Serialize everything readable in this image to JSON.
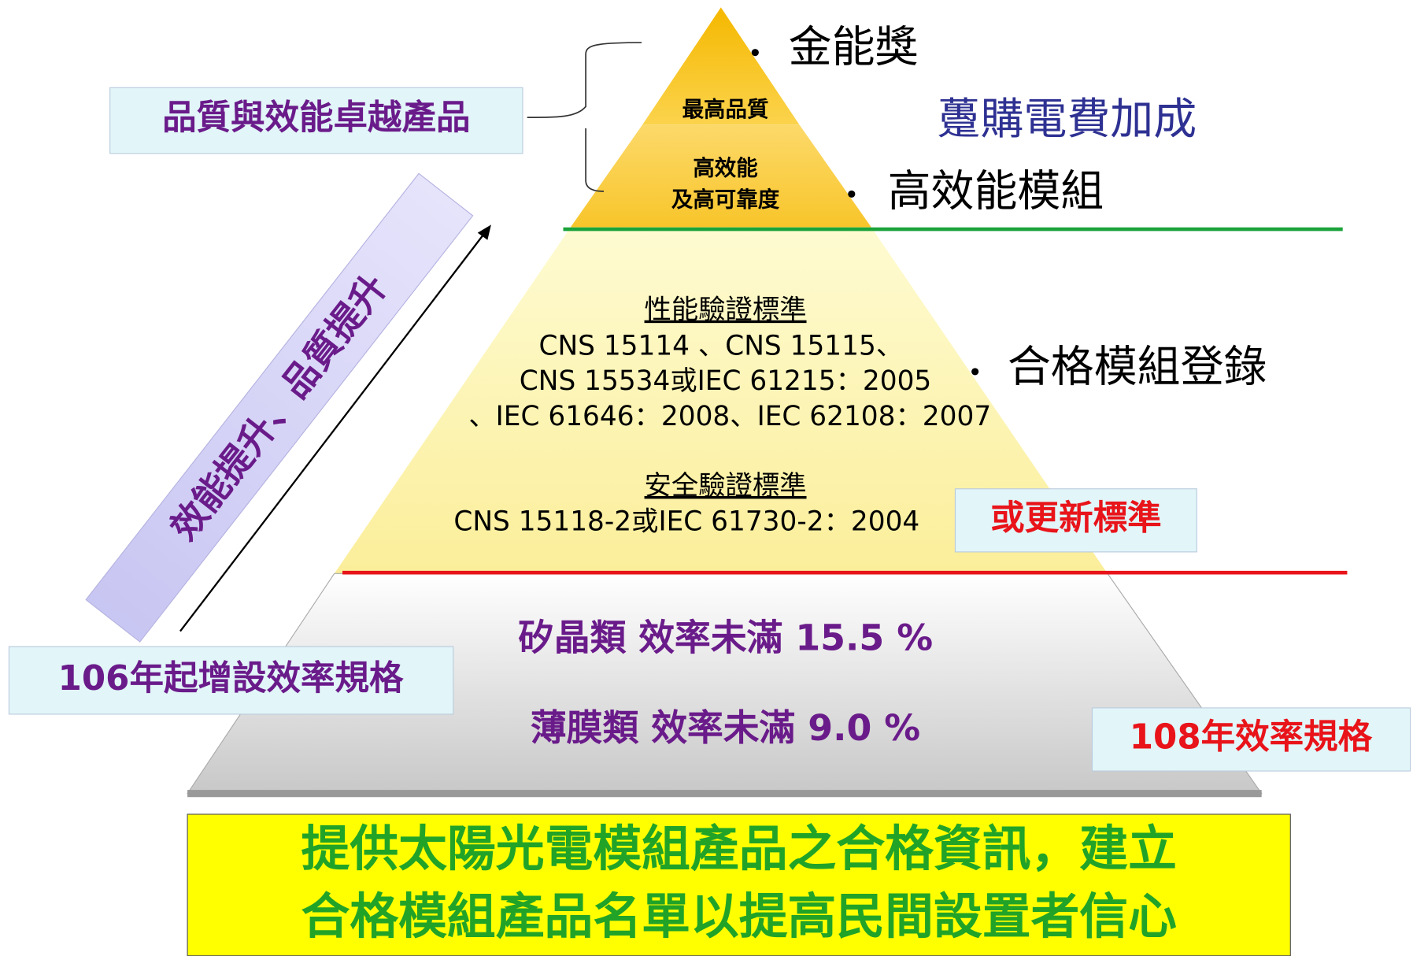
{
  "pyramid": {
    "top": "最高品質",
    "second": [
      "高效能",
      "及高可靠度"
    ],
    "middle": {
      "performance_title": "性能驗證標準",
      "performance_lines": [
        "CNS 15114 、CNS 15115、",
        "CNS 15534或IEC 61215：2005",
        "、IEC 61646：2008、IEC 62108：2007"
      ],
      "safety_title": "安全驗證標準",
      "safety_line": "CNS 15118-2或IEC 61730-2：2004"
    },
    "bottom": [
      "矽晶類 效率未滿 15.5 %",
      "薄膜類 效率未滿 9.0 %"
    ]
  },
  "right": {
    "gold": "金能獎",
    "tariff": "躉購電費加成",
    "high": "高效能模組",
    "registered": "合格模組登錄",
    "update": "或更新標準",
    "spec108": "108年效率規格"
  },
  "left": {
    "excellent": "品質與效能卓越產品",
    "banner": "效能提升、品質提升",
    "spec106": "106年起增設效率規格"
  },
  "footer": [
    "提供太陽光電模組產品之合格資訊，建立",
    "合格模組產品名單以提高民間設置者信心"
  ]
}
